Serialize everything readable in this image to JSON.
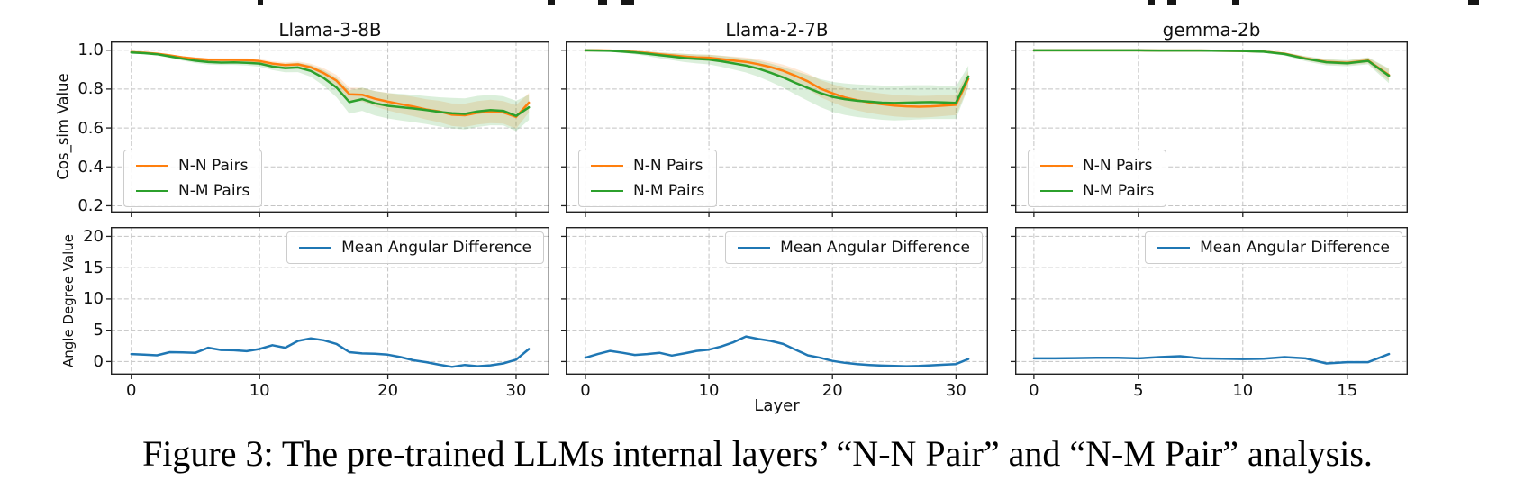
{
  "figure": {
    "caption": "Figure 3: The pre-trained LLMs internal layers’ “N-N Pair” and “N-M Pair” analysis.",
    "xlabel": "Layer"
  },
  "colors": {
    "nn": "#ff7f0e",
    "nm": "#2ca02c",
    "angular": "#1f77b4",
    "grid": "#c4c4c4",
    "axis": "#222222"
  },
  "legend_labels": {
    "nn": "N-N Pairs",
    "nm": "N-M Pairs",
    "angular": "Mean Angular Difference"
  },
  "chart_data": [
    {
      "type": "line",
      "title": "Llama-3-8B",
      "x": [
        0,
        1,
        2,
        3,
        4,
        5,
        6,
        7,
        8,
        9,
        10,
        11,
        12,
        13,
        14,
        15,
        16,
        17,
        18,
        19,
        20,
        21,
        22,
        23,
        24,
        25,
        26,
        27,
        28,
        29,
        30,
        31
      ],
      "xlim": [
        -1.6,
        32.6
      ],
      "xticks": [
        0,
        10,
        20,
        30
      ],
      "panels": [
        {
          "ylabel": "Cos_sim Value",
          "ylim": [
            0.165,
            1.045
          ],
          "ytick_values": [
            1.0,
            0.8,
            0.6,
            0.4,
            0.2
          ],
          "ytick_labels": [
            "1.0",
            "0.8",
            "0.6",
            "0.4",
            "0.2"
          ],
          "legend": "lower left",
          "series": [
            {
              "name": "N-N Pairs",
              "color": "#ff7f0e",
              "values": [
                0.99,
                0.987,
                0.982,
                0.973,
                0.963,
                0.956,
                0.951,
                0.95,
                0.95,
                0.949,
                0.944,
                0.931,
                0.923,
                0.927,
                0.912,
                0.882,
                0.843,
                0.773,
                0.771,
                0.75,
                0.735,
                0.722,
                0.71,
                0.695,
                0.685,
                0.668,
                0.665,
                0.678,
                0.685,
                0.68,
                0.657,
                0.73
              ],
              "band": [
                0.004,
                0.004,
                0.005,
                0.006,
                0.007,
                0.008,
                0.008,
                0.008,
                0.008,
                0.009,
                0.01,
                0.012,
                0.014,
                0.015,
                0.018,
                0.025,
                0.03,
                0.035,
                0.035,
                0.04,
                0.045,
                0.048,
                0.05,
                0.052,
                0.055,
                0.058,
                0.06,
                0.06,
                0.06,
                0.058,
                0.06,
                0.05
              ]
            },
            {
              "name": "N-M Pairs",
              "color": "#2ca02c",
              "values": [
                0.988,
                0.985,
                0.979,
                0.968,
                0.956,
                0.946,
                0.939,
                0.936,
                0.937,
                0.935,
                0.931,
                0.916,
                0.908,
                0.911,
                0.893,
                0.857,
                0.808,
                0.733,
                0.748,
                0.727,
                0.714,
                0.707,
                0.7,
                0.692,
                0.683,
                0.676,
                0.672,
                0.685,
                0.692,
                0.688,
                0.662,
                0.706
              ],
              "band": [
                0.004,
                0.005,
                0.006,
                0.008,
                0.01,
                0.012,
                0.013,
                0.013,
                0.013,
                0.014,
                0.016,
                0.018,
                0.022,
                0.024,
                0.03,
                0.04,
                0.05,
                0.06,
                0.06,
                0.063,
                0.065,
                0.068,
                0.07,
                0.072,
                0.075,
                0.078,
                0.08,
                0.08,
                0.078,
                0.075,
                0.078,
                0.065
              ]
            }
          ]
        },
        {
          "ylabel": "Angle Degree Value",
          "ylim": [
            -2.1,
            21.5
          ],
          "ytick_values": [
            20,
            15,
            10,
            5,
            0
          ],
          "ytick_labels": [
            "20",
            "15",
            "10",
            "5",
            "0"
          ],
          "legend": "upper right",
          "series": [
            {
              "name": "Mean Angular Difference",
              "color": "#1f77b4",
              "values": [
                1.2,
                1.1,
                1.0,
                1.5,
                1.45,
                1.4,
                2.2,
                1.85,
                1.8,
                1.65,
                2.0,
                2.6,
                2.2,
                3.3,
                3.7,
                3.4,
                2.8,
                1.5,
                1.3,
                1.25,
                1.1,
                0.7,
                0.2,
                -0.1,
                -0.5,
                -0.85,
                -0.55,
                -0.75,
                -0.6,
                -0.3,
                0.3,
                2.0
              ]
            }
          ]
        }
      ]
    },
    {
      "type": "line",
      "title": "Llama-2-7B",
      "x": [
        0,
        1,
        2,
        3,
        4,
        5,
        6,
        7,
        8,
        9,
        10,
        11,
        12,
        13,
        14,
        15,
        16,
        17,
        18,
        19,
        20,
        21,
        22,
        23,
        24,
        25,
        26,
        27,
        28,
        29,
        30,
        31
      ],
      "xlim": [
        -1.6,
        32.6
      ],
      "xticks": [
        0,
        10,
        20,
        30
      ],
      "panels": [
        {
          "ylabel": "Cos_sim Value",
          "ylim": [
            0.165,
            1.045
          ],
          "ytick_values": [
            1.0,
            0.8,
            0.6,
            0.4,
            0.2
          ],
          "ytick_labels": [
            "1.0",
            "0.8",
            "0.6",
            "0.4",
            "0.2"
          ],
          "legend": "lower left",
          "series": [
            {
              "name": "N-N Pairs",
              "color": "#ff7f0e",
              "values": [
                0.999,
                0.999,
                0.998,
                0.995,
                0.991,
                0.986,
                0.979,
                0.973,
                0.967,
                0.963,
                0.961,
                0.954,
                0.947,
                0.94,
                0.928,
                0.913,
                0.894,
                0.868,
                0.84,
                0.803,
                0.778,
                0.757,
                0.742,
                0.731,
                0.722,
                0.715,
                0.711,
                0.709,
                0.711,
                0.715,
                0.719,
                0.852
              ],
              "band": [
                0.003,
                0.003,
                0.004,
                0.005,
                0.006,
                0.008,
                0.01,
                0.012,
                0.014,
                0.015,
                0.016,
                0.018,
                0.02,
                0.022,
                0.025,
                0.028,
                0.032,
                0.036,
                0.04,
                0.044,
                0.047,
                0.05,
                0.052,
                0.054,
                0.055,
                0.056,
                0.056,
                0.056,
                0.055,
                0.054,
                0.053,
                0.04
              ]
            },
            {
              "name": "N-M Pairs",
              "color": "#2ca02c",
              "values": [
                0.999,
                0.998,
                0.997,
                0.993,
                0.988,
                0.982,
                0.974,
                0.967,
                0.96,
                0.955,
                0.952,
                0.943,
                0.932,
                0.921,
                0.905,
                0.884,
                0.86,
                0.832,
                0.806,
                0.78,
                0.76,
                0.748,
                0.74,
                0.735,
                0.73,
                0.728,
                0.73,
                0.732,
                0.733,
                0.731,
                0.729,
                0.865
              ],
              "band": [
                0.003,
                0.004,
                0.005,
                0.007,
                0.009,
                0.012,
                0.015,
                0.018,
                0.021,
                0.023,
                0.025,
                0.028,
                0.032,
                0.036,
                0.041,
                0.047,
                0.053,
                0.06,
                0.066,
                0.072,
                0.077,
                0.081,
                0.084,
                0.086,
                0.088,
                0.089,
                0.089,
                0.088,
                0.087,
                0.085,
                0.083,
                0.055
              ]
            }
          ]
        },
        {
          "ylabel": "Angle Degree Value",
          "ylim": [
            -2.1,
            21.5
          ],
          "ytick_values": [
            20,
            15,
            10,
            5,
            0
          ],
          "ytick_labels": [
            "20",
            "15",
            "10",
            "5",
            "0"
          ],
          "legend": "upper right",
          "series": [
            {
              "name": "Mean Angular Difference",
              "color": "#1f77b4",
              "values": [
                0.6,
                1.2,
                1.7,
                1.4,
                1.05,
                1.2,
                1.4,
                0.95,
                1.3,
                1.7,
                1.9,
                2.4,
                3.1,
                4.0,
                3.6,
                3.3,
                2.8,
                1.9,
                1.0,
                0.6,
                0.1,
                -0.2,
                -0.4,
                -0.55,
                -0.65,
                -0.7,
                -0.75,
                -0.7,
                -0.6,
                -0.5,
                -0.4,
                0.4
              ]
            }
          ]
        }
      ]
    },
    {
      "type": "line",
      "title": "gemma-2b",
      "x": [
        0,
        1,
        2,
        3,
        4,
        5,
        6,
        7,
        8,
        9,
        10,
        11,
        12,
        13,
        14,
        15,
        16,
        17
      ],
      "xlim": [
        -0.9,
        17.9
      ],
      "xticks": [
        0,
        5,
        10,
        15
      ],
      "panels": [
        {
          "ylabel": "Cos_sim Value",
          "ylim": [
            0.165,
            1.045
          ],
          "ytick_values": [
            1.0,
            0.8,
            0.6,
            0.4,
            0.2
          ],
          "ytick_labels": [
            "1.0",
            "0.8",
            "0.6",
            "0.4",
            "0.2"
          ],
          "legend": "lower left",
          "series": [
            {
              "name": "N-N Pairs",
              "color": "#ff7f0e",
              "values": [
                0.999,
                0.999,
                0.999,
                0.999,
                0.999,
                0.999,
                0.998,
                0.998,
                0.998,
                0.997,
                0.996,
                0.993,
                0.982,
                0.958,
                0.94,
                0.935,
                0.947,
                0.872
              ],
              "band": [
                0.002,
                0.002,
                0.002,
                0.002,
                0.002,
                0.002,
                0.002,
                0.002,
                0.002,
                0.003,
                0.003,
                0.004,
                0.006,
                0.01,
                0.012,
                0.012,
                0.014,
                0.03
              ]
            },
            {
              "name": "N-M Pairs",
              "color": "#2ca02c",
              "values": [
                0.999,
                0.999,
                0.999,
                0.999,
                0.999,
                0.999,
                0.998,
                0.998,
                0.998,
                0.997,
                0.996,
                0.992,
                0.98,
                0.956,
                0.938,
                0.933,
                0.945,
                0.868
              ],
              "band": [
                0.002,
                0.002,
                0.002,
                0.002,
                0.002,
                0.002,
                0.002,
                0.002,
                0.002,
                0.003,
                0.004,
                0.005,
                0.008,
                0.013,
                0.016,
                0.016,
                0.018,
                0.038
              ]
            }
          ]
        },
        {
          "ylabel": "Angle Degree Value",
          "ylim": [
            -2.1,
            21.5
          ],
          "ytick_values": [
            20,
            15,
            10,
            5,
            0
          ],
          "ytick_labels": [
            "20",
            "15",
            "10",
            "5",
            "0"
          ],
          "legend": "upper right",
          "series": [
            {
              "name": "Mean Angular Difference",
              "color": "#1f77b4",
              "values": [
                0.5,
                0.5,
                0.55,
                0.6,
                0.6,
                0.5,
                0.7,
                0.85,
                0.5,
                0.45,
                0.4,
                0.45,
                0.7,
                0.5,
                -0.3,
                -0.1,
                -0.1,
                1.2
              ]
            }
          ]
        }
      ]
    }
  ]
}
